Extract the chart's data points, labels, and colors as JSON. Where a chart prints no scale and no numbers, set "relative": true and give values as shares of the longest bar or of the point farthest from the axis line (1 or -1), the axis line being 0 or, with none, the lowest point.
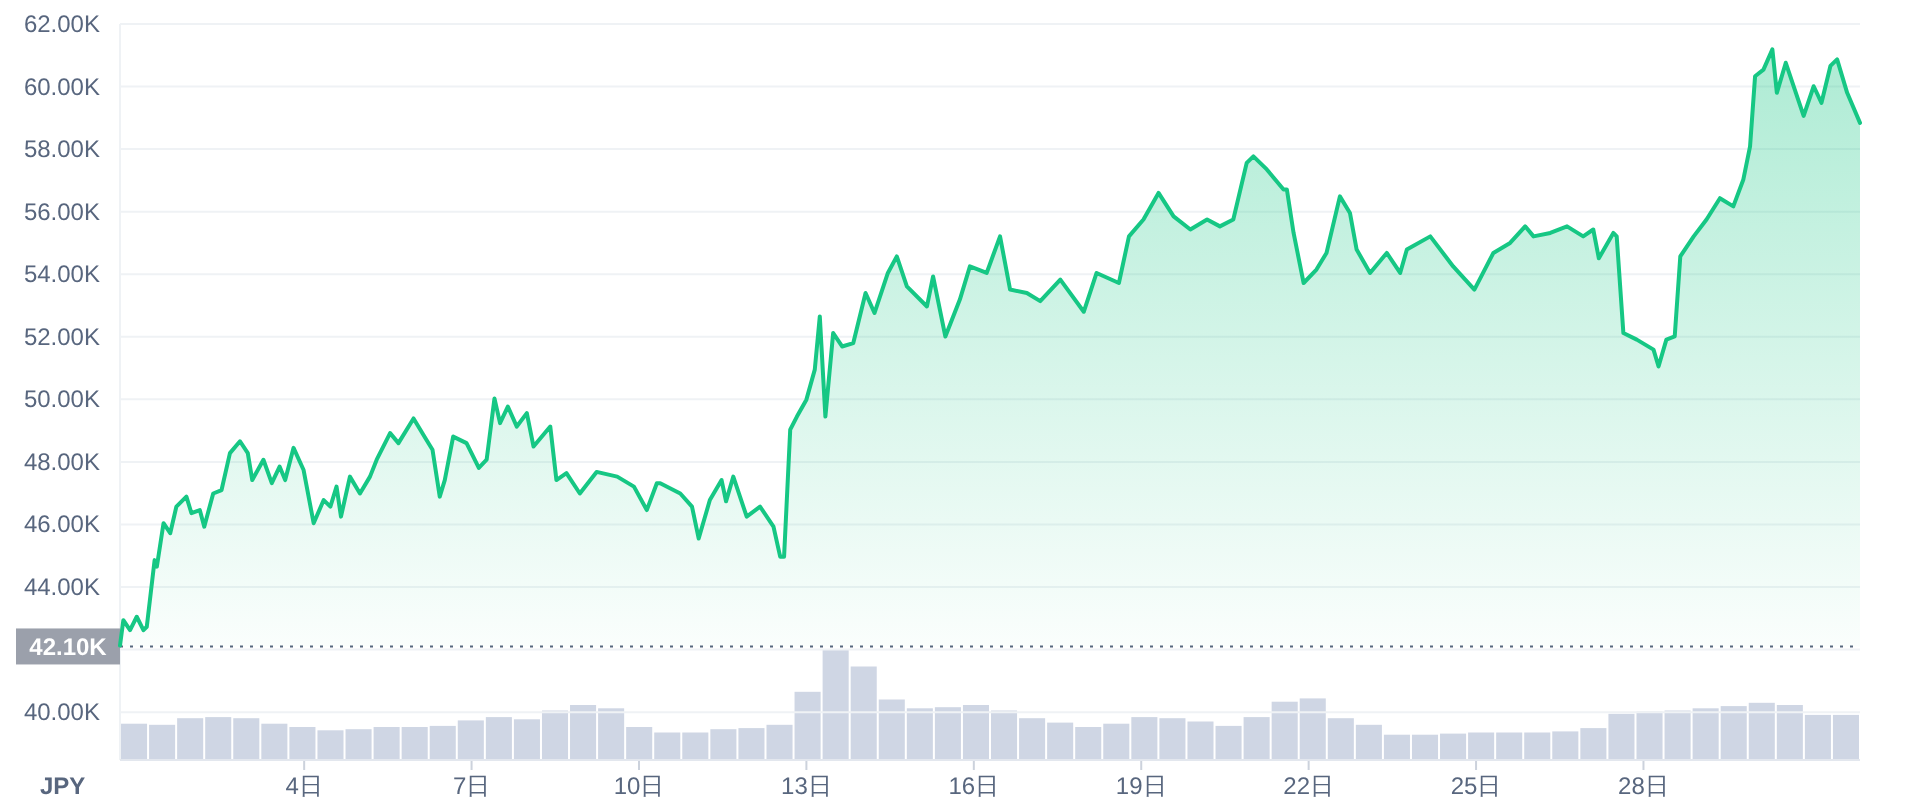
{
  "chart_data": [
    {
      "type": "area",
      "ylabel": "JPY",
      "color": "#16c784",
      "grid": "y",
      "xlim": [
        0.7,
        31.88
      ],
      "ylim": [
        38470,
        62000
      ],
      "xticks": [
        {
          "value": 4,
          "label": "4日"
        },
        {
          "value": 7,
          "label": "7日"
        },
        {
          "value": 10,
          "label": "10日"
        },
        {
          "value": 13,
          "label": "13日"
        },
        {
          "value": 16,
          "label": "16日"
        },
        {
          "value": 19,
          "label": "19日"
        },
        {
          "value": 22,
          "label": "22日"
        },
        {
          "value": 25,
          "label": "25日"
        },
        {
          "value": 28,
          "label": "28日"
        }
      ],
      "yticks": [
        {
          "value": 40000,
          "label": "40.00K"
        },
        {
          "value": 42000,
          "label": null
        },
        {
          "value": 44000,
          "label": "44.00K"
        },
        {
          "value": 46000,
          "label": "46.00K"
        },
        {
          "value": 48000,
          "label": "48.00K"
        },
        {
          "value": 50000,
          "label": "50.00K"
        },
        {
          "value": 52000,
          "label": "52.00K"
        },
        {
          "value": 54000,
          "label": "54.00K"
        },
        {
          "value": 56000,
          "label": "56.00K"
        },
        {
          "value": 58000,
          "label": "58.00K"
        },
        {
          "value": 60000,
          "label": "60.00K"
        },
        {
          "value": 62000,
          "label": "62.00K"
        }
      ],
      "ref_lines": [
        {
          "axis": "y",
          "value": 42100,
          "label": "42.10K",
          "line_style": "dotted"
        }
      ],
      "x": [
        0.7,
        0.76,
        0.88,
        1.0,
        1.12,
        1.18,
        1.32,
        1.36,
        1.48,
        1.6,
        1.71,
        1.89,
        1.98,
        2.13,
        2.21,
        2.37,
        2.52,
        2.67,
        2.85,
        2.99,
        3.07,
        3.27,
        3.42,
        3.56,
        3.66,
        3.81,
        3.99,
        4.17,
        4.35,
        4.47,
        4.58,
        4.66,
        4.82,
        5.0,
        5.18,
        5.3,
        5.54,
        5.69,
        5.96,
        6.19,
        6.3,
        6.43,
        6.52,
        6.67,
        6.91,
        7.13,
        7.27,
        7.41,
        7.51,
        7.65,
        7.81,
        7.99,
        8.11,
        8.41,
        8.52,
        8.7,
        8.94,
        9.24,
        9.61,
        9.91,
        10.14,
        10.32,
        10.38,
        10.74,
        10.95,
        11.07,
        11.27,
        11.48,
        11.56,
        11.69,
        11.93,
        12.17,
        12.41,
        12.53,
        12.6,
        12.71,
        12.83,
        13.0,
        13.15,
        13.24,
        13.34,
        13.48,
        13.64,
        13.84,
        14.06,
        14.22,
        14.46,
        14.62,
        14.8,
        15.16,
        15.27,
        15.49,
        15.75,
        15.93,
        16.23,
        16.47,
        16.65,
        16.95,
        17.19,
        17.55,
        17.97,
        18.2,
        18.6,
        18.78,
        19.04,
        19.31,
        19.58,
        19.88,
        20.18,
        20.41,
        20.65,
        20.89,
        21.01,
        21.25,
        21.55,
        21.61,
        21.73,
        21.91,
        22.14,
        22.32,
        22.56,
        22.74,
        22.86,
        23.1,
        23.4,
        23.64,
        23.76,
        24.18,
        24.59,
        24.97,
        25.31,
        25.61,
        25.88,
        26.03,
        26.33,
        26.63,
        26.92,
        27.1,
        27.2,
        27.46,
        27.52,
        27.64,
        27.88,
        28.18,
        28.27,
        28.41,
        28.56,
        28.66,
        28.9,
        29.13,
        29.37,
        29.61,
        29.79,
        29.91,
        30.0,
        30.15,
        30.31,
        30.39,
        30.55,
        30.69,
        30.87,
        31.05,
        31.19,
        31.35,
        31.47,
        31.65,
        31.88
      ],
      "values": [
        42130,
        42940,
        42620,
        43050,
        42620,
        42730,
        44860,
        44650,
        46040,
        45720,
        46570,
        46890,
        46360,
        46460,
        45930,
        46990,
        47100,
        48280,
        48660,
        48280,
        47420,
        48070,
        47320,
        47850,
        47420,
        48450,
        47740,
        46040,
        46780,
        46570,
        47210,
        46250,
        47530,
        46990,
        47530,
        48070,
        48920,
        48600,
        49390,
        48710,
        48390,
        46890,
        47420,
        48810,
        48600,
        47810,
        48070,
        50030,
        49240,
        49770,
        49130,
        49560,
        48490,
        49130,
        47420,
        47640,
        46990,
        47680,
        47530,
        47210,
        46460,
        47320,
        47320,
        46990,
        46570,
        45550,
        46780,
        47420,
        46740,
        47530,
        46250,
        46570,
        45930,
        44970,
        44970,
        49030,
        49450,
        49990,
        50950,
        52650,
        49450,
        52120,
        51690,
        51800,
        53400,
        52760,
        54040,
        54570,
        53610,
        52970,
        53930,
        52010,
        53190,
        54250,
        54040,
        55210,
        53510,
        53400,
        53140,
        53830,
        52800,
        54040,
        53720,
        55210,
        55750,
        56600,
        55850,
        55430,
        55750,
        55530,
        55750,
        57560,
        57770,
        57350,
        56710,
        56710,
        55320,
        53720,
        54150,
        54680,
        56490,
        55960,
        54790,
        54040,
        54680,
        54040,
        54790,
        55210,
        54250,
        53510,
        54680,
        55000,
        55530,
        55210,
        55320,
        55530,
        55210,
        55430,
        54510,
        55320,
        55210,
        52120,
        51910,
        51590,
        51050,
        51910,
        52010,
        54570,
        55210,
        55750,
        56430,
        56170,
        57030,
        58090,
        60330,
        60540,
        61190,
        59800,
        60760,
        60010,
        59060,
        60010,
        59480,
        60660,
        60870,
        59800,
        58840
      ]
    },
    {
      "type": "bar",
      "relative": true,
      "color": "#cfd6e4",
      "categories": [
        null,
        null,
        null,
        null,
        null,
        null,
        null,
        null,
        null,
        null,
        null,
        null,
        null,
        null,
        null,
        null,
        null,
        null,
        null,
        null,
        null,
        null,
        null,
        null,
        null,
        null,
        null,
        null,
        null,
        null,
        null,
        null,
        null,
        null,
        null,
        null,
        null,
        null,
        null,
        null,
        null,
        null,
        null,
        null,
        null,
        null,
        null,
        null,
        null,
        null,
        null,
        null,
        null,
        null,
        null,
        null,
        null,
        null,
        null,
        null,
        null,
        null
      ],
      "values": [
        0.33,
        0.32,
        0.38,
        0.39,
        0.38,
        0.33,
        0.3,
        0.27,
        0.28,
        0.3,
        0.3,
        0.31,
        0.36,
        0.39,
        0.37,
        0.45,
        0.5,
        0.47,
        0.3,
        0.25,
        0.25,
        0.28,
        0.29,
        0.32,
        0.62,
        1,
        0.85,
        0.55,
        0.47,
        0.48,
        0.5,
        0.45,
        0.38,
        0.34,
        0.3,
        0.33,
        0.39,
        0.38,
        0.35,
        0.31,
        0.39,
        0.53,
        0.56,
        0.38,
        0.32,
        0.23,
        0.23,
        0.24,
        0.25,
        0.25,
        0.25,
        0.26,
        0.29,
        0.42,
        0.44,
        0.45,
        0.47,
        0.49,
        0.52,
        0.5,
        0.41,
        0.41
      ]
    }
  ]
}
